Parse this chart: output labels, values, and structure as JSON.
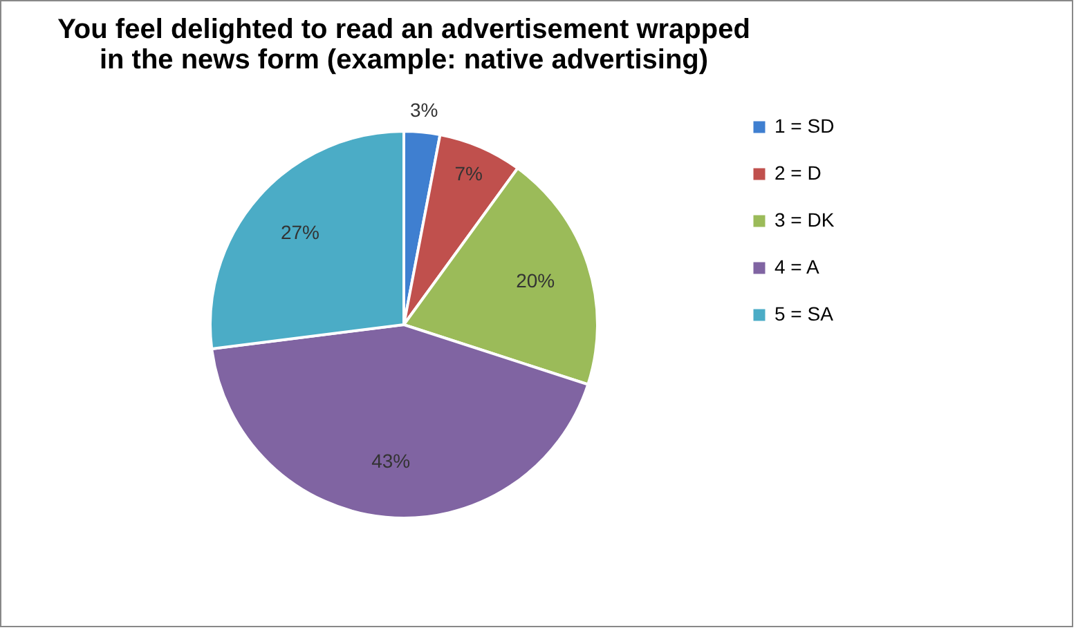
{
  "chart_data": {
    "type": "pie",
    "title": "You feel delighted to read an advertisement wrapped in the news form (example: native advertising)",
    "categories": [
      "1 = SD",
      "2 = D",
      "3 = DK",
      "4 = A",
      "5 = SA"
    ],
    "values": [
      3,
      7,
      20,
      43,
      27
    ],
    "colors": [
      "#3f7fd0",
      "#c0504d",
      "#9bbb59",
      "#8064a2",
      "#4bacc6"
    ],
    "value_labels": [
      "3%",
      "7%",
      "20%",
      "43%",
      "27%"
    ],
    "legend": "right"
  }
}
